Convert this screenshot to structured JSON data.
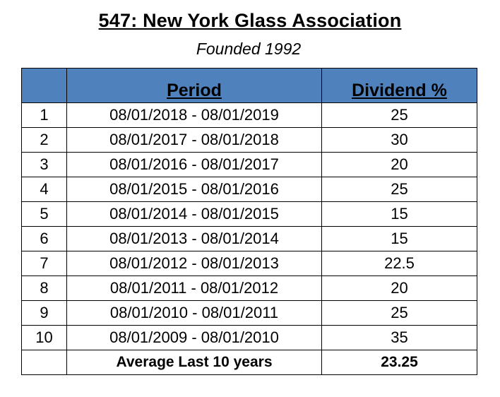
{
  "title": "547: New York Glass Association",
  "subtitle": "Founded 1992",
  "colors": {
    "header_bg": "#4f81bd",
    "border": "#000000",
    "background": "#ffffff"
  },
  "table": {
    "headers": [
      "",
      "Period",
      "Dividend %"
    ],
    "rows": [
      {
        "index": "1",
        "period": "08/01/2018 - 08/01/2019",
        "dividend": "25"
      },
      {
        "index": "2",
        "period": "08/01/2017 - 08/01/2018",
        "dividend": "30"
      },
      {
        "index": "3",
        "period": "08/01/2016 - 08/01/2017",
        "dividend": "20"
      },
      {
        "index": "4",
        "period": "08/01/2015 - 08/01/2016",
        "dividend": "25"
      },
      {
        "index": "5",
        "period": "08/01/2014 - 08/01/2015",
        "dividend": "15"
      },
      {
        "index": "6",
        "period": "08/01/2013 - 08/01/2014",
        "dividend": "15"
      },
      {
        "index": "7",
        "period": "08/01/2012 - 08/01/2013",
        "dividend": "22.5"
      },
      {
        "index": "8",
        "period": "08/01/2011 - 08/01/2012",
        "dividend": "20"
      },
      {
        "index": "9",
        "period": "08/01/2010 - 08/01/2011",
        "dividend": "25"
      },
      {
        "index": "10",
        "period": "08/01/2009 - 08/01/2010",
        "dividend": "35"
      }
    ],
    "footer": {
      "label": "Average Last 10 years",
      "value": "23.25"
    }
  }
}
